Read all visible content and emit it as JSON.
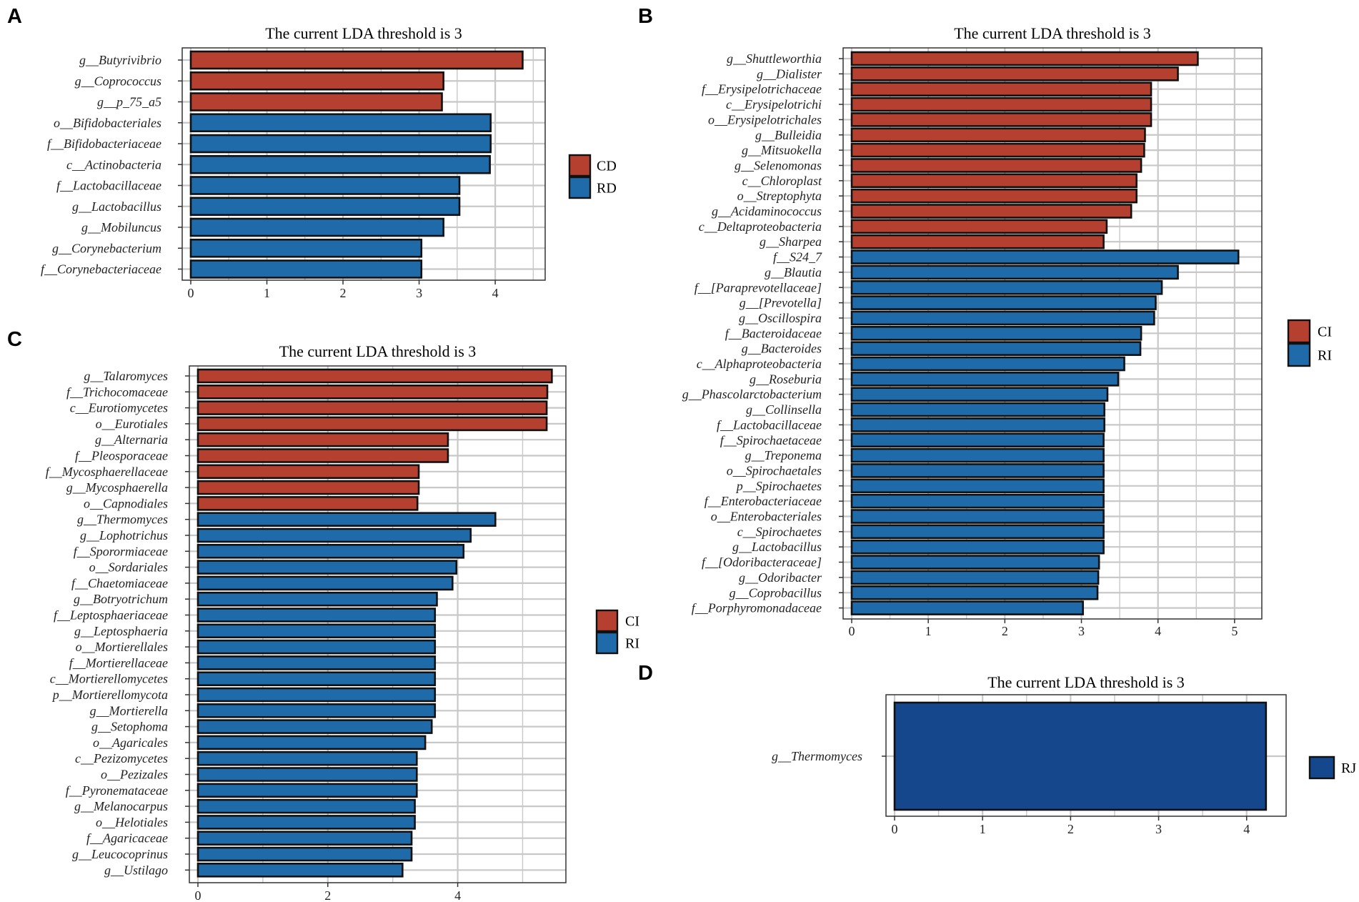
{
  "chart_data": [
    {
      "panel": "A",
      "type": "bar",
      "orientation": "horizontal",
      "title": "The current LDA threshold is 3",
      "xlabel": "",
      "ylabel": "",
      "xlim": [
        0,
        4.6
      ],
      "xticks": [
        0,
        1,
        2,
        3,
        4
      ],
      "grid": true,
      "legend": [
        {
          "name": "CD",
          "color": "#b5402f"
        },
        {
          "name": "RD",
          "color": "#1f6aa8"
        }
      ],
      "legend_position": "right",
      "categories": [
        "g__Butyrivibrio",
        "g__Coprococcus",
        "g__p_75_a5",
        "o__Bifidobacteriales",
        "f__Bifidobacteriaceae",
        "c__Actinobacteria",
        "f__Lactobacillaceae",
        "g__Lactobacillus",
        "g__Mobiluncus",
        "g__Corynebacterium",
        "f__Corynebacteriaceae"
      ],
      "values": [
        4.36,
        3.32,
        3.3,
        3.94,
        3.94,
        3.93,
        3.53,
        3.53,
        3.32,
        3.03,
        3.03
      ],
      "groups": [
        "CD",
        "CD",
        "CD",
        "RD",
        "RD",
        "RD",
        "RD",
        "RD",
        "RD",
        "RD",
        "RD"
      ]
    },
    {
      "panel": "B",
      "type": "bar",
      "orientation": "horizontal",
      "title": "The current LDA threshold is 3",
      "xlabel": "",
      "ylabel": "",
      "xlim": [
        0,
        5.3
      ],
      "xticks": [
        0,
        1,
        2,
        3,
        4,
        5
      ],
      "grid": true,
      "legend": [
        {
          "name": "CI",
          "color": "#b5402f"
        },
        {
          "name": "RI",
          "color": "#1f6aa8"
        }
      ],
      "legend_position": "right",
      "categories": [
        "g__Shuttleworthia",
        "g__Dialister",
        "f__Erysipelotrichaceae",
        "c__Erysipelotrichi",
        "o__Erysipelotrichales",
        "g__Bulleidia",
        "g__Mitsuokella",
        "g__Selenomonas",
        "c__Chloroplast",
        "o__Streptophyta",
        "g__Acidaminococcus",
        "c__Deltaproteobacteria",
        "g__Sharpea",
        "f__S24_7",
        "g__Blautia",
        "f__[Paraprevotellaceae]",
        "g__[Prevotella]",
        "g__Oscillospira",
        "f__Bacteroidaceae",
        "g__Bacteroides",
        "c__Alphaproteobacteria",
        "g__Roseburia",
        "g__Phascolarctobacterium",
        "g__Collinsella",
        "f__Lactobacillaceae",
        "f__Spirochaetaceae",
        "g__Treponema",
        "o__Spirochaetales",
        "p__Spirochaetes",
        "f__Enterobacteriaceae",
        "o__Enterobacteriales",
        "c__Spirochaetes",
        "g__Lactobacillus",
        "f__[Odoribacteraceae]",
        "g__Odoribacter",
        "g__Coprobacillus",
        "f__Porphyromonadaceae"
      ],
      "values": [
        4.52,
        4.26,
        3.91,
        3.91,
        3.91,
        3.83,
        3.82,
        3.78,
        3.72,
        3.72,
        3.65,
        3.33,
        3.29,
        5.05,
        4.26,
        4.05,
        3.97,
        3.95,
        3.78,
        3.77,
        3.56,
        3.48,
        3.34,
        3.3,
        3.3,
        3.29,
        3.29,
        3.29,
        3.29,
        3.29,
        3.29,
        3.29,
        3.29,
        3.23,
        3.22,
        3.21,
        3.02
      ],
      "groups": [
        "CI",
        "CI",
        "CI",
        "CI",
        "CI",
        "CI",
        "CI",
        "CI",
        "CI",
        "CI",
        "CI",
        "CI",
        "CI",
        "RI",
        "RI",
        "RI",
        "RI",
        "RI",
        "RI",
        "RI",
        "RI",
        "RI",
        "RI",
        "RI",
        "RI",
        "RI",
        "RI",
        "RI",
        "RI",
        "RI",
        "RI",
        "RI",
        "RI",
        "RI",
        "RI",
        "RI",
        "RI"
      ]
    },
    {
      "panel": "C",
      "type": "bar",
      "orientation": "horizontal",
      "title": "The current LDA threshold is 3",
      "xlabel": "",
      "ylabel": "",
      "xlim": [
        0,
        5.6
      ],
      "xticks": [
        0,
        2,
        4
      ],
      "grid": true,
      "legend": [
        {
          "name": "CI",
          "color": "#b5402f"
        },
        {
          "name": "RI",
          "color": "#1f6aa8"
        }
      ],
      "legend_position": "right",
      "categories": [
        "g__Talaromyces",
        "f__Trichocomaceae",
        "c__Eurotiomycetes",
        "o__Eurotiales",
        "g__Alternaria",
        "f__Pleosporaceae",
        "f__Mycosphaerellaceae",
        "g__Mycosphaerella",
        "o__Capnodiales",
        "g__Thermomyces",
        "g__Lophotrichus",
        "f__Sporormiaceae",
        "o__Sordariales",
        "f__Chaetomiaceae",
        "g__Botryotrichum",
        "f__Leptosphaeriaceae",
        "g__Leptosphaeria",
        "o__Mortierellales",
        "f__Mortierellaceae",
        "c__Mortierellomycetes",
        "p__Mortierellomycota",
        "g__Mortierella",
        "g__Setophoma",
        "o__Agaricales",
        "c__Pezizomycetes",
        "o__Pezizales",
        "f__Pyronemataceae",
        "g__Melanocarpus",
        "o__Helotiales",
        "f__Agaricaceae",
        "g__Leucocoprinus",
        "g__Ustilago"
      ],
      "values": [
        5.45,
        5.38,
        5.37,
        5.37,
        3.85,
        3.85,
        3.4,
        3.4,
        3.38,
        4.58,
        4.2,
        4.09,
        3.98,
        3.92,
        3.68,
        3.65,
        3.65,
        3.65,
        3.65,
        3.65,
        3.65,
        3.65,
        3.6,
        3.5,
        3.37,
        3.37,
        3.37,
        3.34,
        3.34,
        3.29,
        3.29,
        3.15
      ],
      "groups": [
        "CI",
        "CI",
        "CI",
        "CI",
        "CI",
        "CI",
        "CI",
        "CI",
        "CI",
        "RI",
        "RI",
        "RI",
        "RI",
        "RI",
        "RI",
        "RI",
        "RI",
        "RI",
        "RI",
        "RI",
        "RI",
        "RI",
        "RI",
        "RI",
        "RI",
        "RI",
        "RI",
        "RI",
        "RI",
        "RI",
        "RI",
        "RI"
      ]
    },
    {
      "panel": "D",
      "type": "bar",
      "orientation": "horizontal",
      "title": "The current LDA threshold is 3",
      "xlabel": "",
      "ylabel": "",
      "xlim": [
        0,
        4.4
      ],
      "xticks": [
        0,
        1,
        2,
        3,
        4
      ],
      "grid": true,
      "legend": [
        {
          "name": "RJ",
          "color": "#14478c"
        }
      ],
      "legend_position": "right",
      "categories": [
        "g__Thermomyces"
      ],
      "values": [
        4.22
      ],
      "groups": [
        "RJ"
      ]
    }
  ]
}
